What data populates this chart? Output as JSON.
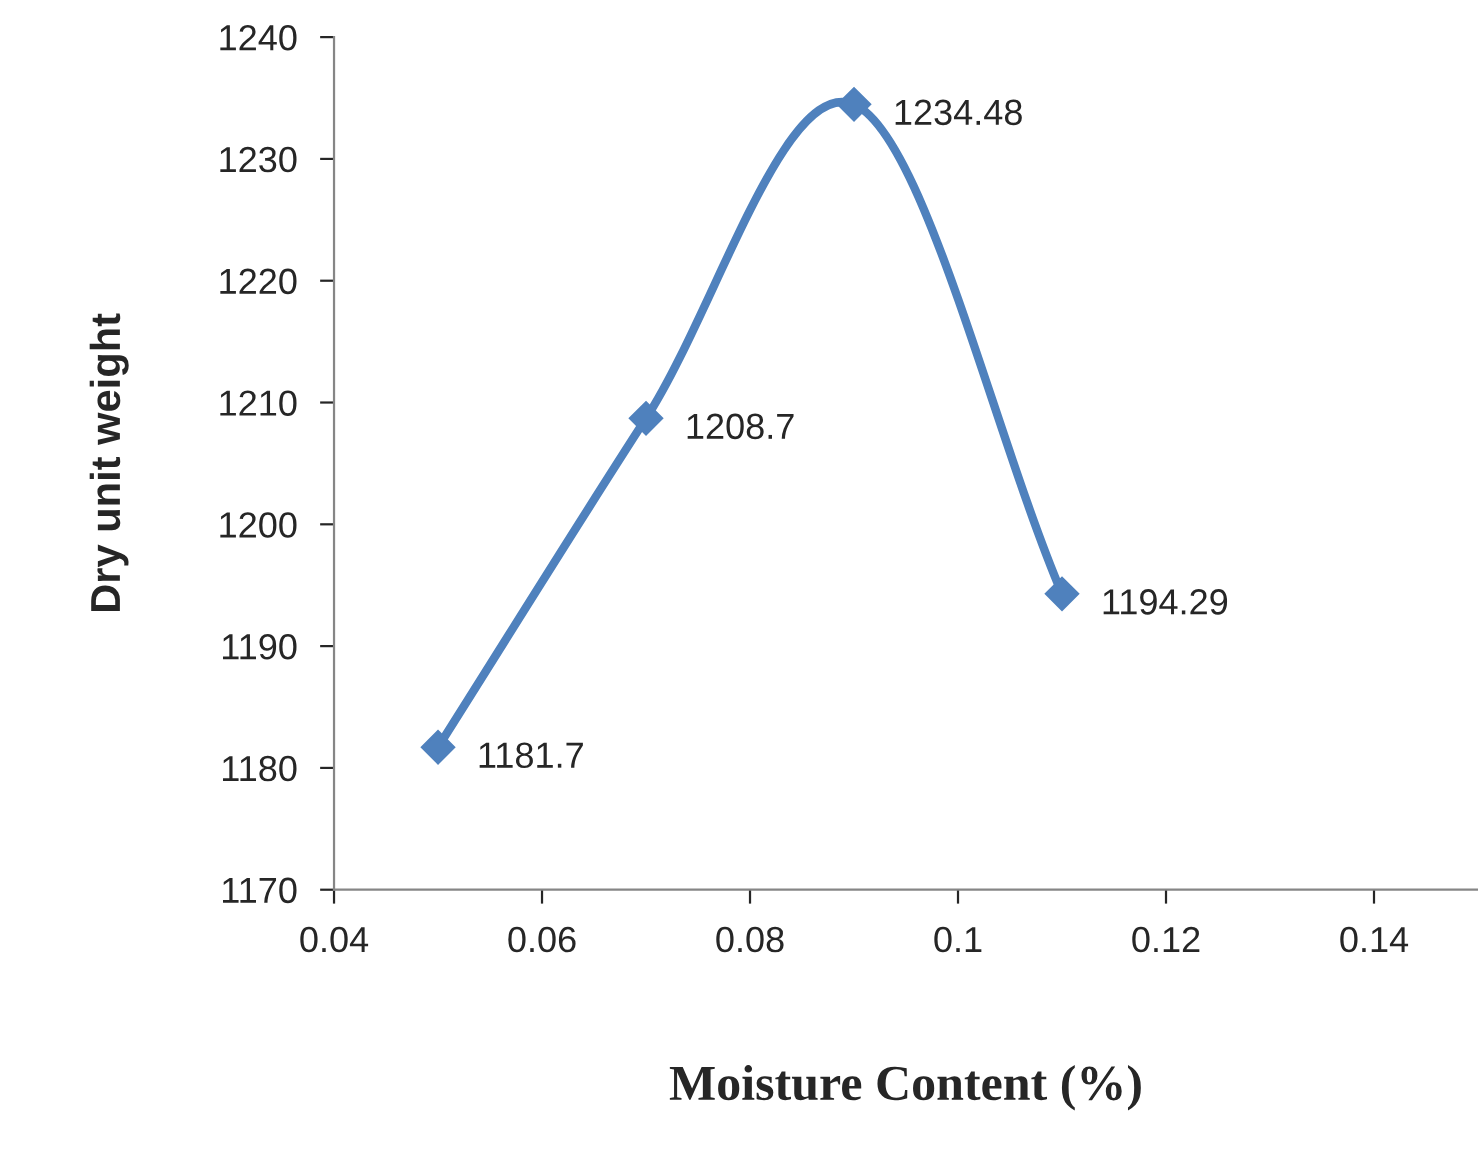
{
  "chart_data": {
    "type": "line",
    "xlabel": "Moisture Content (%)",
    "ylabel": "Dry unit weight",
    "x": [
      0.05,
      0.07,
      0.09,
      0.11
    ],
    "series": [
      {
        "color": "#4f81bd",
        "values": [
          1181.7,
          1208.7,
          1234.48,
          1194.29
        ]
      }
    ],
    "xlim": [
      0.04,
      0.15
    ],
    "xticks": [
      0.04,
      0.06,
      0.08,
      {
        "value": 0.1,
        "label": "0.1"
      },
      0.12,
      0.14
    ],
    "ylim": [
      1170,
      1240
    ],
    "yticks": [
      1170,
      1180,
      1190,
      1200,
      1210,
      1220,
      1230,
      1240
    ],
    "marker": "diamond",
    "line_style": "solid",
    "grid": false,
    "legend": false,
    "data_labels": true
  }
}
